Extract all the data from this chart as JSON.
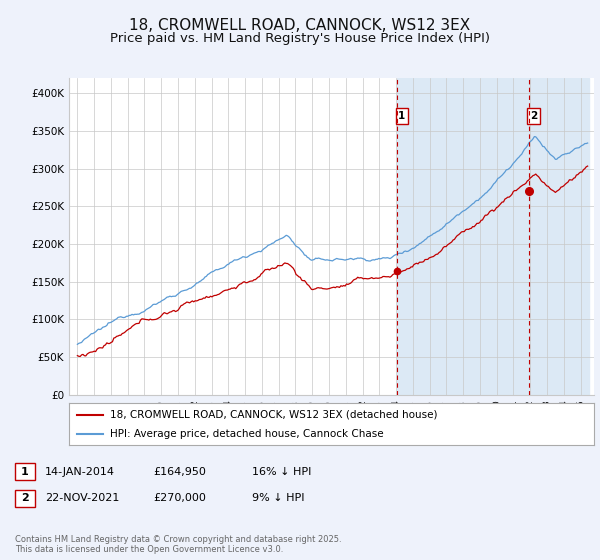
{
  "title": "18, CROMWELL ROAD, CANNOCK, WS12 3EX",
  "subtitle": "Price paid vs. HM Land Registry's House Price Index (HPI)",
  "ylim": [
    0,
    420000
  ],
  "yticks": [
    0,
    50000,
    100000,
    150000,
    200000,
    250000,
    300000,
    350000,
    400000
  ],
  "ytick_labels": [
    "£0",
    "£50K",
    "£100K",
    "£150K",
    "£200K",
    "£250K",
    "£300K",
    "£350K",
    "£400K"
  ],
  "hpi_color": "#5b9bd5",
  "price_color": "#c00000",
  "marker1_date": 2014.04,
  "marker1_price": 164950,
  "marker2_date": 2021.9,
  "marker2_price": 270000,
  "vline_color": "#c00000",
  "shade_color": "#dce9f5",
  "legend_label1": "18, CROMWELL ROAD, CANNOCK, WS12 3EX (detached house)",
  "legend_label2": "HPI: Average price, detached house, Cannock Chase",
  "footer": "Contains HM Land Registry data © Crown copyright and database right 2025.\nThis data is licensed under the Open Government Licence v3.0.",
  "bg_color": "#eef2fb",
  "plot_bg_color": "#ffffff",
  "title_fontsize": 11,
  "subtitle_fontsize": 9.5
}
